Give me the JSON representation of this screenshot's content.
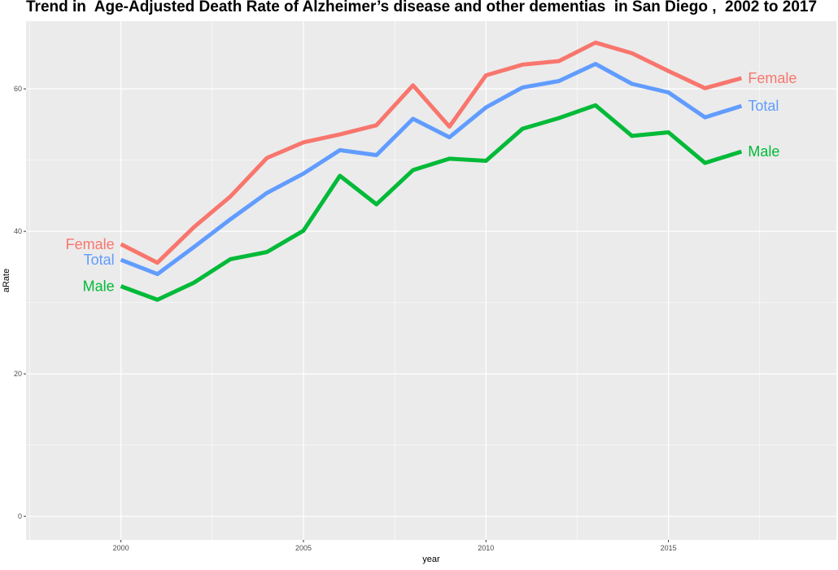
{
  "chart_data": {
    "type": "line",
    "title": "Trend in  Age-Adjusted Death Rate of Alzheimer’s disease and other dementias  in San Diego ,  2002 to 2017",
    "xlabel": "year",
    "ylabel": "aRate",
    "xlim": [
      1997.4,
      2019.6
    ],
    "ylim": [
      -3.3,
      69.5
    ],
    "x_ticks": [
      2000,
      2005,
      2010,
      2015
    ],
    "y_ticks": [
      0,
      20,
      40,
      60
    ],
    "grid": true,
    "legend": "none",
    "x": [
      2000,
      2001,
      2002,
      2003,
      2004,
      2005,
      2006,
      2007,
      2008,
      2009,
      2010,
      2011,
      2012,
      2013,
      2014,
      2015,
      2016,
      2017
    ],
    "series": [
      {
        "name": "Female",
        "color": "#F8766D",
        "values": [
          38.2,
          35.6,
          40.6,
          44.9,
          50.3,
          52.5,
          53.6,
          54.9,
          60.5,
          54.7,
          61.9,
          63.4,
          63.9,
          66.5,
          65.0,
          62.5,
          60.1,
          61.5
        ]
      },
      {
        "name": "Total",
        "color": "#619CFF",
        "values": [
          36.0,
          34.0,
          37.8,
          41.7,
          45.4,
          48.1,
          51.4,
          50.7,
          55.8,
          53.2,
          57.4,
          60.2,
          61.1,
          63.5,
          60.7,
          59.5,
          56.0,
          57.6
        ]
      },
      {
        "name": "Male",
        "color": "#00BA38",
        "values": [
          32.3,
          30.4,
          32.8,
          36.1,
          37.1,
          40.1,
          47.8,
          43.8,
          48.6,
          50.2,
          49.9,
          54.4,
          55.9,
          57.7,
          53.4,
          53.9,
          49.6,
          51.2
        ]
      }
    ]
  }
}
